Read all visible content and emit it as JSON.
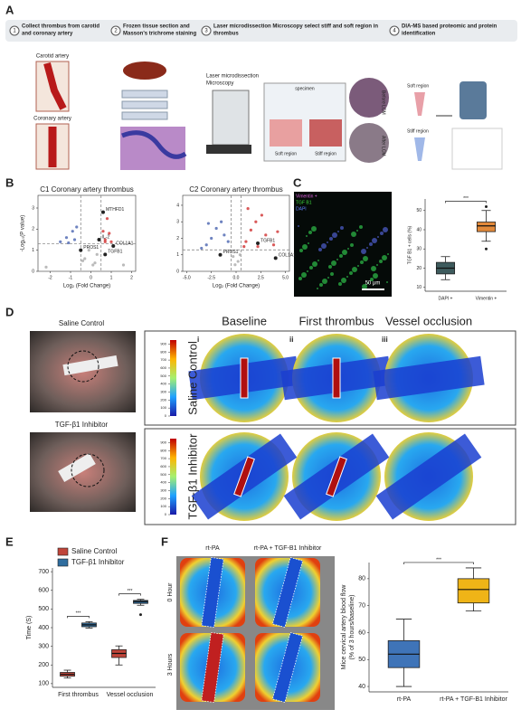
{
  "panel_a": {
    "letter": "A",
    "steps": [
      {
        "num": "1",
        "lines": [
          "Collect thrombus from carotid",
          "and coronary artery"
        ]
      },
      {
        "num": "2",
        "lines": [
          "Frozen tissue section and",
          "Masson's trichrome staining"
        ]
      },
      {
        "num": "3",
        "lines": [
          "Laser microdissection Microscopy select  stiff and soft region in",
          "thrombus"
        ]
      },
      {
        "num": "4",
        "lines": [
          "DIA-MS based proteomic and protein",
          "identification"
        ]
      }
    ],
    "carotid": "Carotid artery",
    "coronary": "Coronary artery",
    "microscope": [
      "Laser microdissection",
      "Microscopy"
    ],
    "specimen": "specimen",
    "soft": "Soft region",
    "stiff": "Stiff region",
    "before": "Before LCM",
    "after": "After LCM",
    "soft2": "Soft region",
    "stiff2": "Stiff region"
  },
  "panel_b": {
    "letter": "B",
    "plots": [
      {
        "type": "volcano",
        "title": "C1 Coronary artery thrombus",
        "xlabel": "Log₂ (Fold Change)",
        "ylabel": "-Log₁₀(P value)",
        "xlim": [
          -2.6,
          2.2
        ],
        "xticks": [
          -2,
          -1,
          0,
          1,
          2
        ],
        "ylim": [
          0,
          3.6
        ],
        "yticks": [
          0,
          1,
          2,
          3
        ],
        "vlines": [
          -0.5,
          0.5
        ],
        "hline": 1.3,
        "points": [
          [
            -1.2,
            1.6
          ],
          [
            -0.9,
            1.9
          ],
          [
            -1.5,
            1.4
          ],
          [
            -0.7,
            2.1
          ],
          [
            -0.8,
            1.5
          ],
          [
            -1.1,
            1.35
          ],
          [
            -0.3,
            0.6
          ],
          [
            0.2,
            0.4
          ],
          [
            -0.1,
            1.0
          ],
          [
            0.3,
            0.8
          ],
          [
            0.1,
            0.3
          ],
          [
            -0.4,
            0.5
          ],
          [
            0.7,
            1.5
          ],
          [
            0.9,
            1.8
          ],
          [
            0.6,
            1.9
          ],
          [
            1.0,
            1.4
          ],
          [
            0.8,
            2.5
          ],
          [
            0.7,
            1.4
          ],
          [
            -2.2,
            0.2
          ],
          [
            1.6,
            0.3
          ]
        ],
        "genes": [
          {
            "name": "MTHFD1",
            "x": 0.6,
            "y": 2.8
          },
          {
            "name": "IL-2",
            "x": 0.4,
            "y": 1.5
          },
          {
            "name": "PROS1",
            "x": -0.5,
            "y": 1.0
          },
          {
            "name": "COL1A1",
            "x": 1.1,
            "y": 1.2
          },
          {
            "name": "TGFB1",
            "x": 0.7,
            "y": 0.8
          }
        ]
      },
      {
        "type": "volcano",
        "title": "C2 Coronary artery thrombus",
        "xlabel": "Log₂ (Fold Change)",
        "ylabel": "",
        "xlim": [
          -5.4,
          5.4
        ],
        "xticks": [
          {
            "value": -5,
            "label": "-5.0"
          },
          {
            "value": -2.5,
            "label": "-2.5"
          },
          {
            "value": 0,
            "label": "0.0"
          },
          {
            "value": 2.5,
            "label": "2.5"
          },
          {
            "value": 5,
            "label": "5.0"
          }
        ],
        "ylim": [
          0,
          4.6
        ],
        "yticks": [
          0,
          1,
          2,
          3,
          4
        ],
        "vlines": [
          -0.5,
          0.5
        ],
        "hline": 1.3,
        "points": [
          [
            -2.5,
            2.0
          ],
          [
            -3.0,
            1.6
          ],
          [
            -2.0,
            2.6
          ],
          [
            -1.5,
            3.0
          ],
          [
            -1.2,
            2.2
          ],
          [
            -3.5,
            1.4
          ],
          [
            -0.8,
            1.8
          ],
          [
            -2.8,
            2.9
          ],
          [
            -0.3,
            0.9
          ],
          [
            0.2,
            0.6
          ],
          [
            0.4,
            1.0
          ],
          [
            -0.1,
            0.4
          ],
          [
            1.5,
            2.5
          ],
          [
            2.0,
            3.0
          ],
          [
            3.0,
            2.2
          ],
          [
            2.6,
            3.4
          ],
          [
            1.0,
            1.8
          ],
          [
            3.8,
            1.6
          ],
          [
            4.2,
            2.4
          ],
          [
            1.2,
            3.8
          ],
          [
            0.8,
            1.5
          ],
          [
            2.2,
            1.5
          ]
        ],
        "genes": [
          {
            "name": "TGFB1",
            "x": 2.2,
            "y": 1.7
          },
          {
            "name": "COL1A1",
            "x": 4.0,
            "y": 0.8
          },
          {
            "name": "PROS1",
            "x": -1.6,
            "y": 1.0
          }
        ]
      }
    ]
  },
  "panel_c": {
    "letter": "C",
    "stains": [
      "Vimentin +",
      "TGF B1",
      "DAPI"
    ],
    "scale": "50 μm",
    "chart": {
      "type": "box",
      "ylabel": "TGF B1 + cells (%)",
      "ylim": [
        8,
        56
      ],
      "yticks": [
        10,
        20,
        30,
        40,
        50
      ],
      "categories": [
        "DAPI +",
        "Vimentin +"
      ],
      "colors": [
        "#3e5b5d",
        "#e2893a"
      ],
      "boxes": [
        {
          "min": 14,
          "q1": 17,
          "median": 20,
          "q3": 23,
          "max": 26,
          "outliers": []
        },
        {
          "min": 34,
          "q1": 39,
          "median": 42,
          "q3": 44,
          "max": 50,
          "outliers": [
            30,
            52
          ]
        }
      ],
      "significance": [
        "***"
      ]
    }
  },
  "panel_d": {
    "letter": "D",
    "photo_labels": [
      "Saline Control",
      "TGF-β1 Inhibitor"
    ],
    "columns": [
      "Baseline",
      "First thrombus",
      "Vessel occlusion"
    ],
    "roman": [
      "i",
      "ii",
      "iii"
    ],
    "rows": [
      "Saline Control",
      "TGF-β1 Inhibitor"
    ],
    "colorbar": {
      "ticks": [
        0,
        100,
        200,
        300,
        400,
        500,
        600,
        700,
        800,
        900
      ],
      "lim": [
        0,
        950
      ]
    }
  },
  "panel_e": {
    "letter": "E",
    "chart": {
      "type": "box",
      "ylabel": "Time (S)",
      "ylim": [
        80,
        720
      ],
      "yticks": [
        100,
        200,
        300,
        400,
        500,
        600,
        700
      ],
      "categories": [
        "First thrombus",
        "Vessel occlusion"
      ],
      "series": [
        {
          "name": "Saline Control",
          "color": "#c0453a",
          "boxes": [
            {
              "min": 130,
              "q1": 140,
              "median": 150,
              "q3": 160,
              "max": 172,
              "outliers": []
            },
            {
              "min": 200,
              "q1": 240,
              "median": 262,
              "q3": 282,
              "max": 302,
              "outliers": []
            }
          ]
        },
        {
          "name": "TGF-β1 Inhibitor",
          "color": "#2f6d9e",
          "boxes": [
            {
              "min": 398,
              "q1": 405,
              "median": 415,
              "q3": 425,
              "max": 432,
              "outliers": []
            },
            {
              "min": 520,
              "q1": 530,
              "median": 540,
              "q3": 546,
              "max": 552,
              "outliers": [
                470
              ]
            }
          ]
        }
      ],
      "significance": [
        "***",
        "***"
      ]
    }
  },
  "panel_f": {
    "letter": "F",
    "columns": [
      "rt-PA",
      "rt-PA + TGF-B1 Inhibitor"
    ],
    "rows": [
      "0 Hour",
      "3 Hours"
    ],
    "chart": {
      "type": "box",
      "ylabel": [
        "Mice cervical artery blood flow",
        "(% of 3 hours/baseline)"
      ],
      "ylim": [
        38,
        86
      ],
      "yticks": [
        40,
        50,
        60,
        70,
        80
      ],
      "categories": [
        "rt-PA",
        "rt-PA + TGF-B1 Inhibitor"
      ],
      "colors": [
        "#3f74b8",
        "#efb417"
      ],
      "boxes": [
        {
          "min": 40,
          "q1": 47,
          "median": 52,
          "q3": 57,
          "max": 65,
          "outliers": []
        },
        {
          "min": 68,
          "q1": 71,
          "median": 76,
          "q3": 80,
          "max": 84,
          "outliers": []
        }
      ],
      "significance": [
        "***"
      ]
    }
  }
}
